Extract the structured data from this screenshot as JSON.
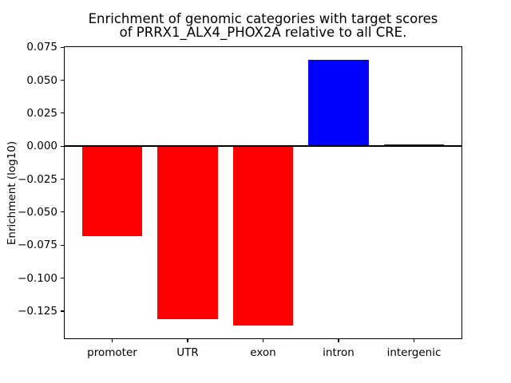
{
  "chart_data": {
    "type": "bar",
    "title": "Enrichment of genomic categories with target scores of PRRX1_ALX4_PHOX2A relative to all CRE.",
    "title_lines": [
      "Enrichment of genomic categories with target scores",
      "of PRRX1_ALX4_PHOX2A relative to all CRE."
    ],
    "xlabel": "",
    "ylabel": "Enrichment (log10)",
    "categories": [
      "promoter",
      "UTR",
      "exon",
      "intron",
      "intergenic"
    ],
    "values": [
      -0.0685,
      -0.1313,
      -0.136,
      0.0655,
      0.0015
    ],
    "colors": [
      "#ff0000",
      "#ff0000",
      "#ff0000",
      "#0000ff",
      "#0000ff"
    ],
    "negative_color": "#ff0000",
    "positive_color": "#0000ff",
    "ylim": [
      -0.1462,
      0.0757
    ],
    "xlim": [
      -0.64,
      4.64
    ],
    "bar_width": 0.8,
    "grid": false,
    "legend": false,
    "zero_line": true,
    "yticks": [
      {
        "value": 0.075,
        "label": "0.075"
      },
      {
        "value": 0.05,
        "label": "0.050"
      },
      {
        "value": 0.025,
        "label": "0.025"
      },
      {
        "value": 0.0,
        "label": "0.000"
      },
      {
        "value": -0.025,
        "label": "−0.025"
      },
      {
        "value": -0.05,
        "label": "−0.050"
      },
      {
        "value": -0.075,
        "label": "−0.075"
      },
      {
        "value": -0.1,
        "label": "−0.100"
      },
      {
        "value": -0.125,
        "label": "−0.125"
      }
    ]
  }
}
